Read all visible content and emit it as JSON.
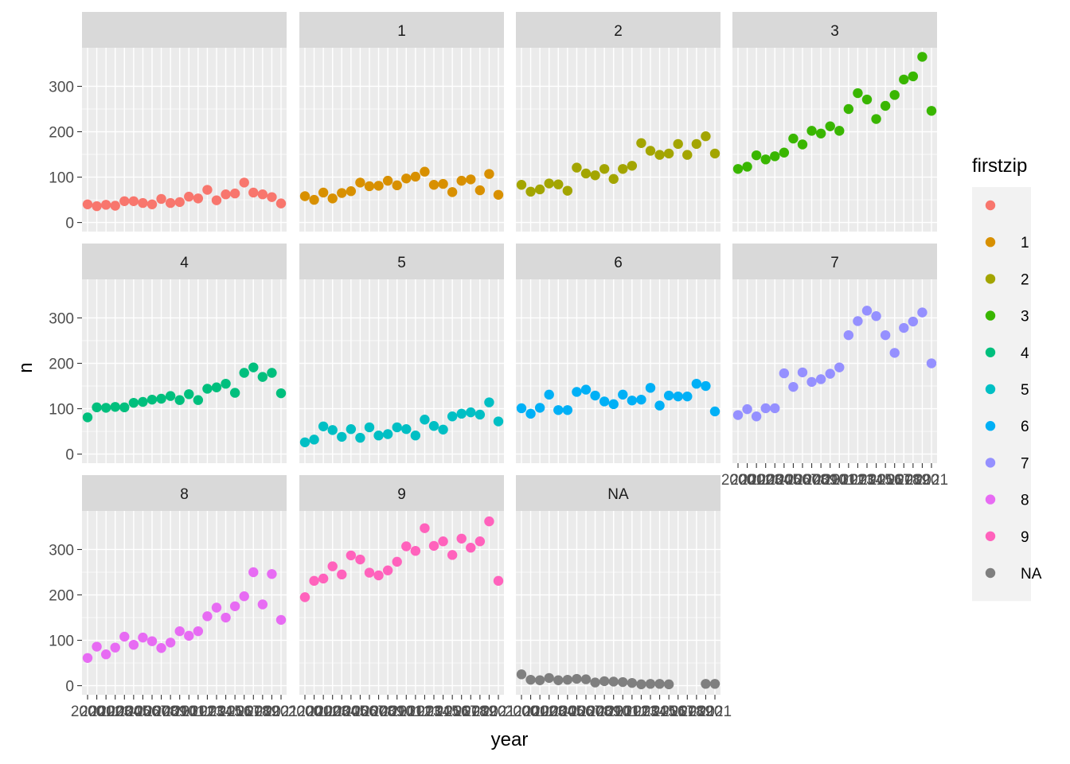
{
  "chart_data": {
    "type": "scatter",
    "xlabel": "year",
    "ylabel": "n",
    "facet_by": "firstzip",
    "x": [
      2000,
      2001,
      2002,
      2003,
      2004,
      2005,
      2006,
      2007,
      2008,
      2009,
      2010,
      2011,
      2012,
      2013,
      2014,
      2015,
      2016,
      2017,
      2018,
      2019,
      2020,
      2021
    ],
    "x_tick_labels": [
      "2000",
      "2001",
      "2002",
      "2003",
      "2004",
      "2005",
      "2006",
      "2007",
      "2008",
      "2009",
      "2010",
      "2011",
      "2012",
      "2013",
      "2014",
      "2015",
      "2016",
      "2017",
      "2018",
      "2019",
      "2020",
      "2021"
    ],
    "xlim": [
      2000,
      2021
    ],
    "ylim": [
      -20,
      385
    ],
    "y_ticks": [
      0,
      100,
      200,
      300
    ],
    "y_tick_labels": [
      "0",
      "100",
      "200",
      "300"
    ],
    "legend": {
      "title": "firstzip",
      "position": "right",
      "entries": [
        "",
        "1",
        "2",
        "3",
        "4",
        "5",
        "6",
        "7",
        "8",
        "9",
        "NA"
      ]
    },
    "panels": [
      {
        "label": "",
        "color": "#F8766D",
        "values": [
          40,
          36,
          39,
          37,
          47,
          47,
          43,
          40,
          52,
          43,
          45,
          57,
          53,
          72,
          49,
          62,
          64,
          88,
          66,
          62,
          56,
          42
        ]
      },
      {
        "label": "1",
        "color": "#D89000",
        "values": [
          58,
          50,
          66,
          53,
          65,
          69,
          88,
          80,
          81,
          92,
          82,
          97,
          101,
          112,
          83,
          85,
          67,
          92,
          95,
          71,
          107,
          61
        ]
      },
      {
        "label": "2",
        "color": "#A3A500",
        "values": [
          83,
          68,
          73,
          86,
          84,
          70,
          121,
          108,
          104,
          118,
          96,
          118,
          125,
          175,
          158,
          149,
          152,
          173,
          149,
          173,
          190,
          152
        ]
      },
      {
        "label": "3",
        "color": "#39B600",
        "values": [
          118,
          123,
          148,
          139,
          146,
          154,
          185,
          172,
          202,
          196,
          212,
          202,
          250,
          285,
          271,
          228,
          257,
          281,
          315,
          322,
          365,
          246
        ]
      },
      {
        "label": "4",
        "color": "#00BF7D",
        "values": [
          81,
          103,
          102,
          104,
          103,
          113,
          115,
          120,
          122,
          128,
          119,
          132,
          119,
          144,
          147,
          155,
          135,
          179,
          191,
          170,
          179,
          134
        ]
      },
      {
        "label": "5",
        "color": "#00BFC4",
        "values": [
          26,
          32,
          61,
          53,
          38,
          55,
          36,
          59,
          41,
          44,
          59,
          55,
          41,
          76,
          62,
          54,
          83,
          89,
          92,
          87,
          114,
          72
        ]
      },
      {
        "label": "6",
        "color": "#00B0F6",
        "values": [
          101,
          89,
          102,
          131,
          97,
          97,
          137,
          142,
          129,
          116,
          110,
          131,
          118,
          120,
          146,
          107,
          129,
          127,
          127,
          155,
          150,
          94
        ]
      },
      {
        "label": "7",
        "color": "#9590FF",
        "values": [
          86,
          99,
          83,
          101,
          101,
          178,
          148,
          180,
          159,
          165,
          177,
          191,
          262,
          293,
          316,
          304,
          262,
          223,
          278,
          292,
          312,
          200
        ]
      },
      {
        "label": "8",
        "color": "#E76BF3",
        "values": [
          61,
          86,
          69,
          84,
          108,
          90,
          106,
          98,
          83,
          95,
          120,
          110,
          120,
          153,
          172,
          150,
          175,
          197,
          250,
          179,
          246,
          145
        ]
      },
      {
        "label": "9",
        "color": "#FF62BC",
        "values": [
          195,
          231,
          236,
          263,
          245,
          287,
          278,
          249,
          243,
          254,
          273,
          307,
          297,
          347,
          308,
          318,
          288,
          324,
          304,
          318,
          362,
          231
        ]
      },
      {
        "label": "NA",
        "color": "#7F7F7F",
        "values": [
          25,
          13,
          12,
          17,
          12,
          13,
          15,
          14,
          7,
          10,
          9,
          8,
          6,
          3,
          4,
          4,
          3,
          null,
          null,
          null,
          4,
          4
        ]
      }
    ]
  }
}
